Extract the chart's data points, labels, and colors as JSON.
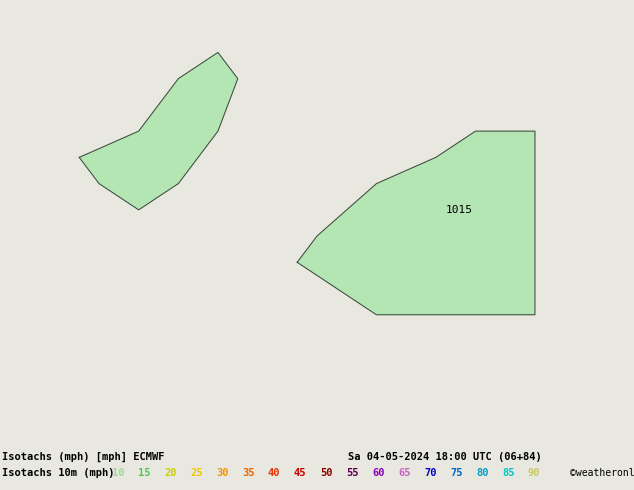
{
  "title_line1": "Isotachs (mph) [mph] ECMWF",
  "title_line2": "Isotachs 10m (mph)",
  "date_str": "Sa 04-05-2024 18:00 UTC (06+84)",
  "credit": "©weatheronline.co.uk",
  "legend_values": [
    10,
    15,
    20,
    25,
    30,
    35,
    40,
    45,
    50,
    55,
    60,
    65,
    70,
    75,
    80,
    85,
    90
  ],
  "legend_colors": [
    "#a0d890",
    "#50c850",
    "#c8d200",
    "#f0c800",
    "#f09600",
    "#f06400",
    "#e63200",
    "#c80000",
    "#8c0000",
    "#5a0050",
    "#8c00be",
    "#c864c8",
    "#0000c8",
    "#0064c8",
    "#00a0c8",
    "#00c8c8",
    "#c8c864"
  ],
  "bg_color": "#e8e8e0",
  "land_color": "#b4e6b4",
  "sea_color": "#d8d8d0",
  "border_color": "#606060",
  "coast_color": "#404040",
  "pressure_label": "1015",
  "extent": [
    -12,
    20,
    43,
    60
  ],
  "figsize": [
    6.34,
    4.9
  ],
  "dpi": 100
}
